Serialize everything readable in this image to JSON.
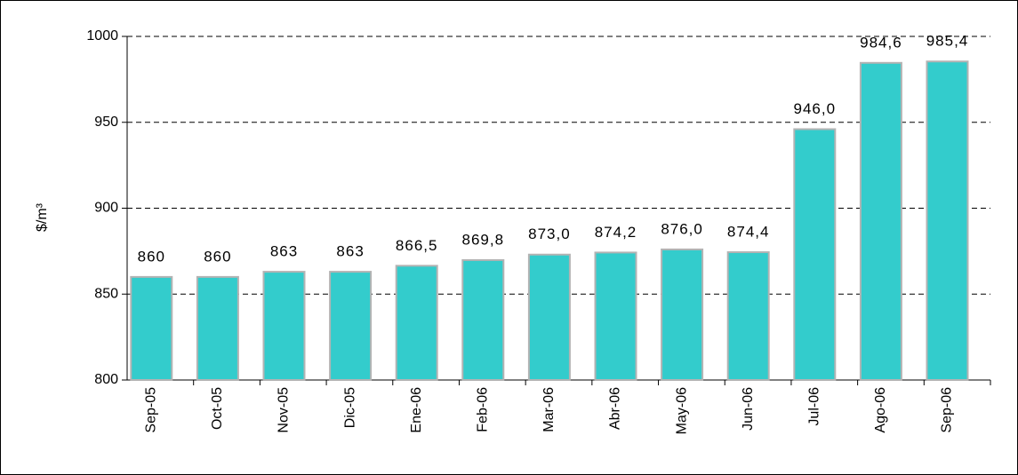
{
  "chart_data": {
    "type": "bar",
    "y_label": "$/m³",
    "categories": [
      "Sep-05",
      "Oct-05",
      "Nov-05",
      "Dic-05",
      "Ene-06",
      "Feb-06",
      "Mar-06",
      "Abr-06",
      "May-06",
      "Jun-06",
      "Jul-06",
      "Ago-06",
      "Sep-06"
    ],
    "values": [
      860,
      860,
      863,
      863,
      866.5,
      869.8,
      873.0,
      874.2,
      876.0,
      874.4,
      946.0,
      984.6,
      985.4
    ],
    "value_labels": [
      "860",
      "860",
      "863",
      "863",
      "866,5",
      "869,8",
      "873,0",
      "874,2",
      "876,0",
      "874,4",
      "946,0",
      "984,6",
      "985,4"
    ],
    "color": "#33cccc",
    "ylim": [
      800,
      1000
    ],
    "yticks": [
      800,
      850,
      900,
      950,
      1000
    ],
    "grid": true
  }
}
